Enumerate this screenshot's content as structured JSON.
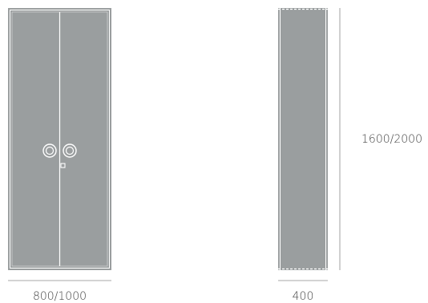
{
  "dimensions": {
    "front_width": "800/1000",
    "side_depth": "400",
    "height": "1600/2000"
  },
  "colors": {
    "panel": "#9a9e9f",
    "frame_line": "#ffffff",
    "dimension_line": "#8a8a8a",
    "label": "#444444"
  }
}
